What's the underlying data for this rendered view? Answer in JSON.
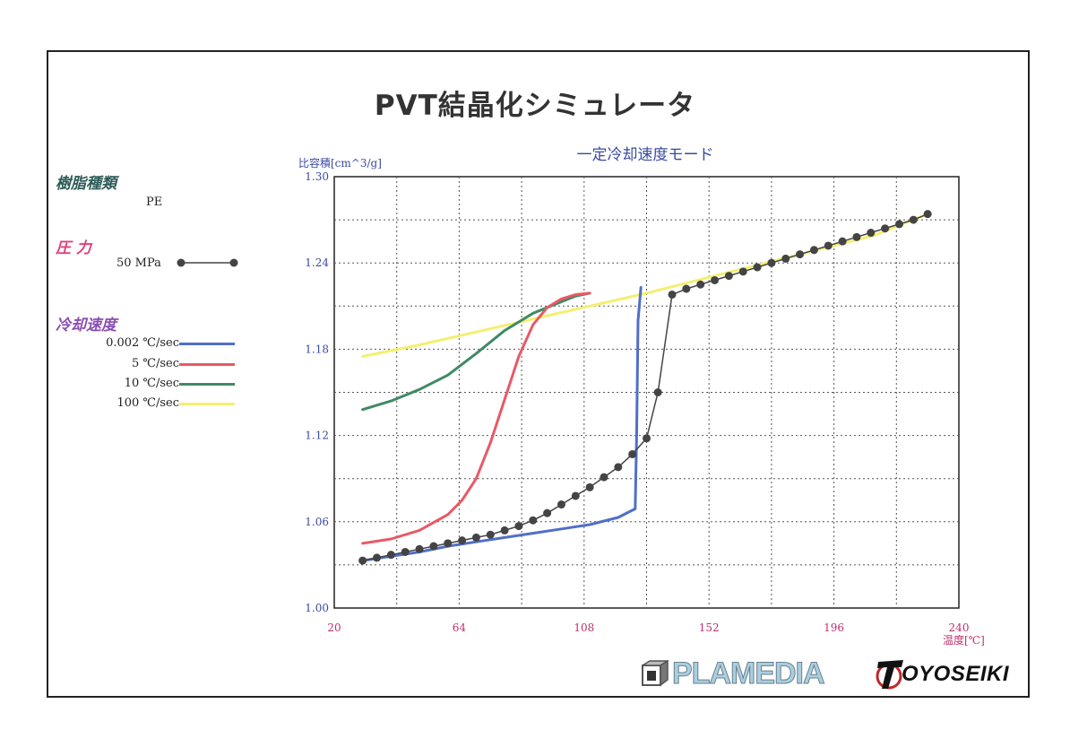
{
  "page": {
    "title": "PVT結晶化シミュレータ"
  },
  "sidebar": {
    "resin_heading": "樹脂種類",
    "resin_value": "PE",
    "pressure_heading": "圧 力",
    "pressure_value": "50 MPa",
    "cooling_heading": "冷却速度",
    "cooling_items": [
      {
        "label": "0.002 ℃/sec",
        "color": "#4f6fc8"
      },
      {
        "label": "5 ℃/sec",
        "color": "#e85a66"
      },
      {
        "label": "10 ℃/sec",
        "color": "#3f8a66"
      },
      {
        "label": "100 ℃/sec",
        "color": "#f4ef70"
      }
    ],
    "colors": {
      "resin": "#2e5c58",
      "pressure": "#e0407a",
      "cooling": "#8a4fb0",
      "marker": "#444444"
    }
  },
  "chart_data": {
    "type": "line",
    "title": "一定冷却速度モード",
    "ylabel": "比容積[cm^3/g]",
    "xlabel": "温度[℃]",
    "xlim": [
      20,
      240
    ],
    "ylim": [
      1.0,
      1.3
    ],
    "x_ticks": [
      20,
      64,
      108,
      152,
      196,
      240
    ],
    "x_tick_labels": [
      "20",
      "64",
      "108",
      "152",
      "196",
      "240"
    ],
    "y_ticks": [
      1.0,
      1.06,
      1.12,
      1.18,
      1.24,
      1.3
    ],
    "y_tick_labels": [
      "1.00",
      "1.06",
      "1.12",
      "1.18",
      "1.24",
      "1.30"
    ],
    "grid": true,
    "series": [
      {
        "name": "50 MPa",
        "kind": "markers",
        "color": "#444444",
        "x": [
          30,
          35,
          40,
          45,
          50,
          55,
          60,
          65,
          70,
          75,
          80,
          85,
          90,
          95,
          100,
          105,
          110,
          115,
          120,
          125,
          130,
          134,
          139,
          144,
          149,
          154,
          159,
          164,
          169,
          174,
          179,
          184,
          189,
          194,
          199,
          204,
          209,
          214,
          219,
          224,
          229
        ],
        "y": [
          1.033,
          1.035,
          1.037,
          1.039,
          1.041,
          1.043,
          1.045,
          1.047,
          1.049,
          1.051,
          1.054,
          1.057,
          1.061,
          1.066,
          1.072,
          1.078,
          1.084,
          1.091,
          1.098,
          1.107,
          1.118,
          1.15,
          1.218,
          1.222,
          1.225,
          1.228,
          1.231,
          1.234,
          1.237,
          1.24,
          1.243,
          1.246,
          1.249,
          1.252,
          1.255,
          1.258,
          1.261,
          1.264,
          1.267,
          1.27,
          1.274
        ]
      },
      {
        "name": "0.002 ℃/sec",
        "color": "#4f6fc8",
        "x": [
          30,
          40,
          50,
          60,
          70,
          80,
          90,
          100,
          110,
          120,
          126,
          126.5,
          127,
          128
        ],
        "y": [
          1.033,
          1.036,
          1.039,
          1.043,
          1.046,
          1.049,
          1.052,
          1.055,
          1.058,
          1.063,
          1.069,
          1.12,
          1.2,
          1.223
        ]
      },
      {
        "name": "5 ℃/sec",
        "color": "#e85a66",
        "x": [
          30,
          40,
          50,
          60,
          65,
          70,
          75,
          80,
          85,
          90,
          95,
          100,
          105,
          110
        ],
        "y": [
          1.045,
          1.048,
          1.054,
          1.065,
          1.075,
          1.09,
          1.115,
          1.145,
          1.175,
          1.197,
          1.209,
          1.215,
          1.218,
          1.219
        ]
      },
      {
        "name": "10 ℃/sec",
        "color": "#3f8a66",
        "x": [
          30,
          40,
          50,
          60,
          70,
          80,
          90,
          100,
          105,
          110
        ],
        "y": [
          1.138,
          1.144,
          1.152,
          1.162,
          1.177,
          1.193,
          1.205,
          1.213,
          1.217,
          1.219
        ]
      },
      {
        "name": "100 ℃/sec",
        "color": "#f4ef70",
        "x": [
          30,
          50,
          70,
          90,
          110,
          130,
          150,
          170,
          190,
          210,
          229
        ],
        "y": [
          1.175,
          1.183,
          1.192,
          1.201,
          1.21,
          1.219,
          1.229,
          1.239,
          1.249,
          1.259,
          1.274
        ]
      }
    ]
  },
  "logos": {
    "left_text": "PLAMEDIA",
    "right_text": "OYOSEIKI",
    "right_mark": "T"
  }
}
